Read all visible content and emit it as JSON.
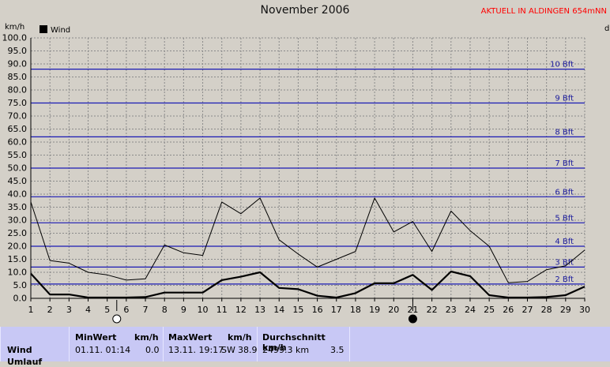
{
  "title": "November 2006",
  "brand_text": "AKTUELL IN ALDINGEN 654mNN",
  "right_edge_text": "d",
  "chart_data": {
    "type": "line",
    "y_unit_label": "km/h",
    "ylim": [
      0,
      100
    ],
    "y_ticks": [
      "0.0",
      "5.0",
      "10.0",
      "15.0",
      "20.0",
      "25.0",
      "30.0",
      "35.0",
      "40.0",
      "45.0",
      "50.0",
      "55.0",
      "60.0",
      "65.0",
      "70.0",
      "75.0",
      "80.0",
      "85.0",
      "90.0",
      "95.0",
      "100.0"
    ],
    "x_ticks": [
      "1",
      "2",
      "3",
      "4",
      "5",
      "6",
      "7",
      "8",
      "9",
      "10",
      "11",
      "12",
      "13",
      "14",
      "15",
      "16",
      "17",
      "18",
      "19",
      "20",
      "21",
      "22",
      "23",
      "24",
      "25",
      "26",
      "27",
      "28",
      "29",
      "30"
    ],
    "x": [
      1,
      2,
      3,
      4,
      5,
      6,
      7,
      8,
      9,
      10,
      11,
      12,
      13,
      14,
      15,
      16,
      17,
      18,
      19,
      20,
      21,
      22,
      23,
      24,
      25,
      26,
      27,
      28,
      29,
      30
    ],
    "grid": true,
    "legend_position": "top-left",
    "series": [
      {
        "name": "Wind",
        "role": "mean",
        "color": "#000000",
        "width": 2.2,
        "values": [
          9.5,
          1.5,
          1.5,
          0.3,
          0.3,
          0.3,
          0.5,
          2.2,
          2.2,
          2.2,
          7.0,
          8.3,
          10.0,
          4.0,
          3.5,
          1.0,
          0.3,
          2.0,
          5.8,
          5.8,
          9.0,
          3.2,
          10.3,
          8.5,
          1.2,
          0.3,
          0.3,
          0.5,
          1.2,
          4.5
        ]
      },
      {
        "role": "gust",
        "color": "#000000",
        "width": 1,
        "values": [
          37.0,
          14.5,
          13.5,
          10.0,
          9.0,
          7.0,
          7.5,
          20.5,
          17.5,
          16.5,
          37.0,
          32.5,
          38.5,
          22.5,
          17.0,
          12.0,
          15.0,
          18.0,
          38.5,
          25.5,
          29.5,
          18.0,
          33.5,
          26.0,
          20.0,
          6.0,
          6.5,
          11.0,
          12.5,
          18.5
        ]
      }
    ],
    "beaufort_lines": [
      {
        "label": "2 Bft",
        "kmh": 5.5
      },
      {
        "label": "3 Bft",
        "kmh": 12
      },
      {
        "label": "4 Bft",
        "kmh": 20
      },
      {
        "label": "5 Bft",
        "kmh": 29
      },
      {
        "label": "6 Bft",
        "kmh": 39
      },
      {
        "label": "7 Bft",
        "kmh": 50
      },
      {
        "label": "8 Bft",
        "kmh": 62
      },
      {
        "label": "9 Bft",
        "kmh": 75
      },
      {
        "label": "10 Bft",
        "kmh": 88
      }
    ],
    "moon_phases": [
      {
        "day": 5.5,
        "phase": "full-moon"
      },
      {
        "day": 21,
        "phase": "new-moon"
      }
    ]
  },
  "stats": {
    "row_label": "Wind",
    "row_label_2": "Umlauf",
    "min": {
      "header": "MinWert",
      "unit": "km/h",
      "datetime": "01.11.  01:14",
      "value": "0.0"
    },
    "max": {
      "header": "MaxWert",
      "unit": "km/h",
      "datetime": "13.11.  19:17",
      "direction": "SW",
      "value": "38.9"
    },
    "avg": {
      "header": "Durchschnitt km/h",
      "distance": "2499.3 km",
      "value": "3.5"
    }
  }
}
